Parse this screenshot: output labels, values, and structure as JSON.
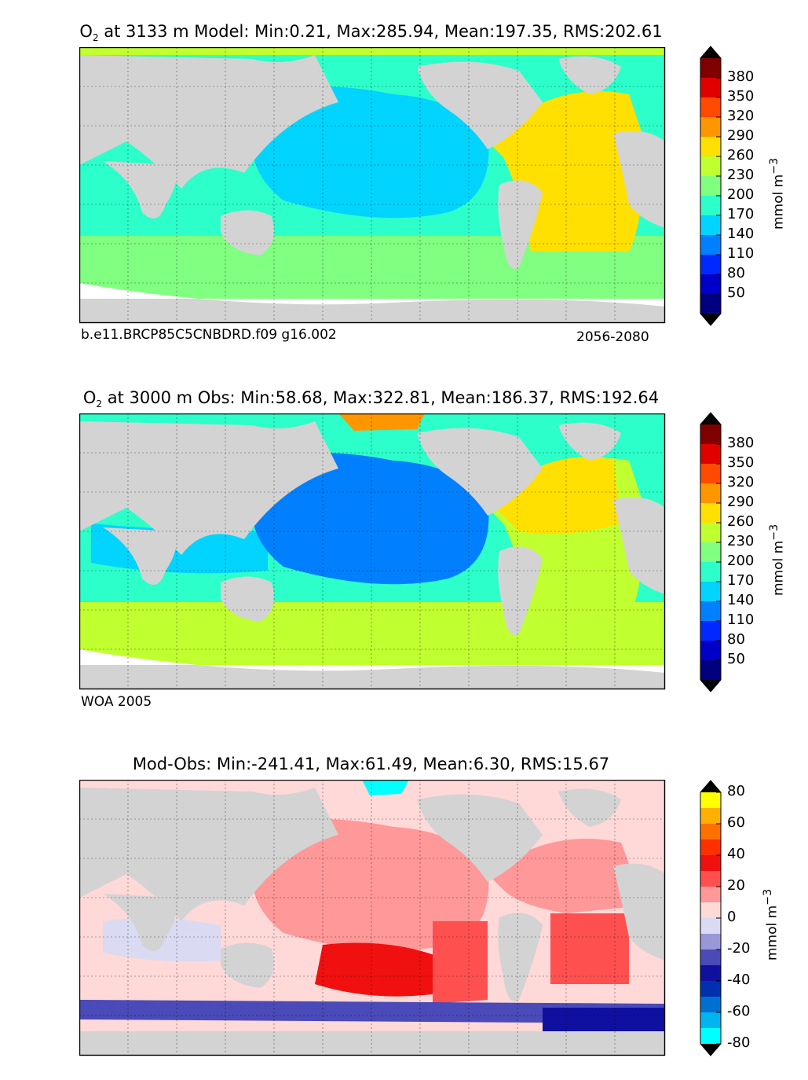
{
  "colors": {
    "land": "#d3d3d3",
    "ocean_nodata": "#ffffff"
  },
  "panels": [
    {
      "id": "model",
      "title_species": "O",
      "title_sub": "2",
      "title_rest": " at 3133 m Model: Min:0.21, Max:285.94, Mean:197.35, RMS:202.61",
      "left_note": "b.e11.BRCP85C5CNBDRD.f09 g16.002",
      "right_note": "2056-2080",
      "colorbar": {
        "unit": "mmol m",
        "unit_sup": "−3",
        "ticks": [
          "50",
          "80",
          "110",
          "140",
          "170",
          "200",
          "230",
          "260",
          "290",
          "320",
          "350",
          "380"
        ],
        "colors": [
          "#000080",
          "#0000c8",
          "#0028ff",
          "#0080ff",
          "#00d4ff",
          "#2cffca",
          "#80ff80",
          "#c0ff30",
          "#ffe000",
          "#ff9600",
          "#ff4a00",
          "#e00000",
          "#800000"
        ]
      }
    },
    {
      "id": "obs",
      "title_species": "O",
      "title_sub": "2",
      "title_rest": " at 3000 m Obs: Min:58.68, Max:322.81, Mean:186.37, RMS:192.64",
      "left_note": "WOA 2005",
      "right_note": "",
      "colorbar": {
        "unit": "mmol m",
        "unit_sup": "−3",
        "ticks": [
          "50",
          "80",
          "110",
          "140",
          "170",
          "200",
          "230",
          "260",
          "290",
          "320",
          "350",
          "380"
        ],
        "colors": [
          "#000080",
          "#0000c8",
          "#0028ff",
          "#0080ff",
          "#00d4ff",
          "#2cffca",
          "#80ff80",
          "#c0ff30",
          "#ffe000",
          "#ff9600",
          "#ff4a00",
          "#e00000",
          "#800000"
        ]
      }
    },
    {
      "id": "diff",
      "title_species": "",
      "title_sub": "",
      "title_rest": "Mod-Obs: Min:-241.41, Max:61.49, Mean:6.30, RMS:15.67",
      "left_note": "",
      "right_note": "",
      "colorbar": {
        "unit": "mmol m",
        "unit_sup": "−3",
        "ticks": [
          "-80",
          "-60",
          "-40",
          "-20",
          "0",
          "20",
          "40",
          "60",
          "80"
        ],
        "colors": [
          "#00ffff",
          "#00b4f0",
          "#0070d0",
          "#0030b0",
          "#1010a0",
          "#4a4ab8",
          "#9898d8",
          "#dadaf2",
          "#ffd8d8",
          "#ff9898",
          "#ff5050",
          "#f01010",
          "#ff3000",
          "#ff7000",
          "#ffb000",
          "#ffff00"
        ]
      }
    }
  ]
}
